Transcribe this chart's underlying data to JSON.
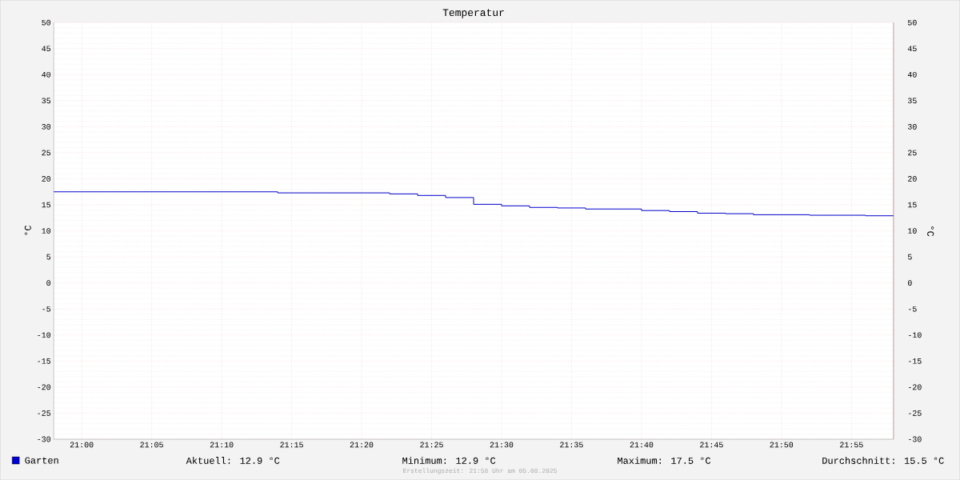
{
  "chart_data": {
    "type": "step",
    "title": "Temperatur",
    "ylabel": "°C",
    "y2label": "°C",
    "x": [
      20.9667,
      21.2333,
      21.3667,
      21.4,
      21.4333,
      21.4667,
      21.5,
      21.5333,
      21.5667,
      21.6,
      21.6667,
      21.7,
      21.7333,
      21.7667,
      21.8,
      21.8667,
      21.9333,
      21.9667
    ],
    "series": [
      {
        "name": "Garten",
        "color": "#0000cc",
        "values": [
          17.5,
          17.3,
          17.1,
          16.8,
          16.4,
          15.1,
          14.8,
          14.5,
          14.4,
          14.2,
          13.9,
          13.7,
          13.4,
          13.3,
          13.1,
          13.0,
          12.9,
          12.9
        ]
      }
    ],
    "xlim": [
      20.9667,
      21.9667
    ],
    "xticks": [
      {
        "value": 21.0,
        "label": "21:00"
      },
      {
        "value": 21.0833,
        "label": "21:05"
      },
      {
        "value": 21.1667,
        "label": "21:10"
      },
      {
        "value": 21.25,
        "label": "21:15"
      },
      {
        "value": 21.3333,
        "label": "21:20"
      },
      {
        "value": 21.4167,
        "label": "21:25"
      },
      {
        "value": 21.5,
        "label": "21:30"
      },
      {
        "value": 21.5833,
        "label": "21:35"
      },
      {
        "value": 21.6667,
        "label": "21:40"
      },
      {
        "value": 21.75,
        "label": "21:45"
      },
      {
        "value": 21.8333,
        "label": "21:50"
      },
      {
        "value": 21.9167,
        "label": "21:55"
      }
    ],
    "ylim": [
      -30,
      50
    ],
    "yticks": [
      -30,
      -25,
      -20,
      -15,
      -10,
      -5,
      0,
      5,
      10,
      15,
      20,
      25,
      30,
      35,
      40,
      45,
      50
    ],
    "y2lim": [
      -30,
      50
    ],
    "y2ticks": [
      -30,
      -25,
      -20,
      -15,
      -10,
      -5,
      0,
      5,
      10,
      15,
      20,
      25,
      30,
      35,
      40,
      45,
      50
    ],
    "grid": true,
    "legend": "bottom",
    "marker": "none",
    "line_style": "solid",
    "annotations": [
      "Aktuell: 12.9 °C",
      "Minimum: 12.9 °C",
      "Maximum: 17.5 °C",
      "Durchschnitt: 15.5 °C",
      "Erstellungszeit: 21:58 Uhr am 05.08.2025"
    ]
  }
}
